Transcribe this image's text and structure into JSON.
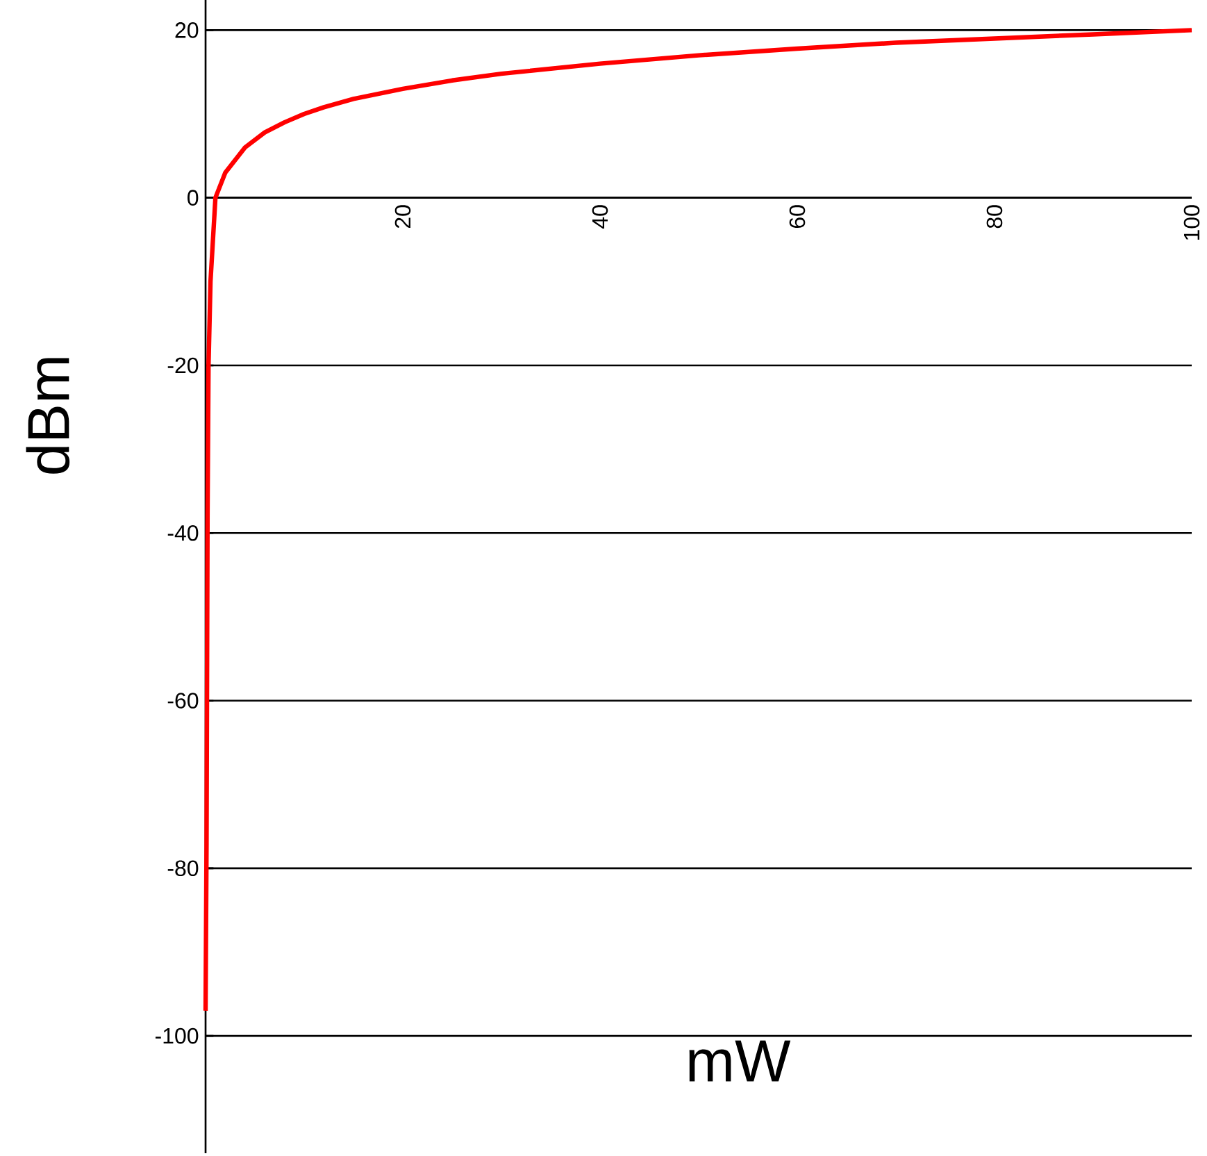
{
  "chart_data": {
    "type": "line",
    "xlabel": "mW",
    "ylabel": "dBm",
    "x": [
      0,
      0.1,
      0.2,
      0.3,
      0.5,
      1,
      2,
      4,
      6,
      8,
      10,
      12,
      15,
      20,
      25,
      30,
      40,
      50,
      60,
      70,
      80,
      90,
      100
    ],
    "series": [
      {
        "color": "#ff0000",
        "values": [
          -97,
          -77,
          -38,
          -20,
          -10,
          0,
          3,
          6,
          7.8,
          9,
          10,
          10.8,
          11.8,
          13,
          14,
          14.8,
          16,
          17,
          17.8,
          18.5,
          19,
          19.5,
          20
        ]
      }
    ],
    "xlim": [
      0,
      100
    ],
    "xticks": [
      20,
      40,
      60,
      80,
      100
    ],
    "ylim": [
      -114,
      23.6
    ],
    "yticks": [
      -100,
      -80,
      -60,
      -40,
      -20,
      0,
      20
    ],
    "grid": "y",
    "marker": "none",
    "line_style": "solid"
  }
}
